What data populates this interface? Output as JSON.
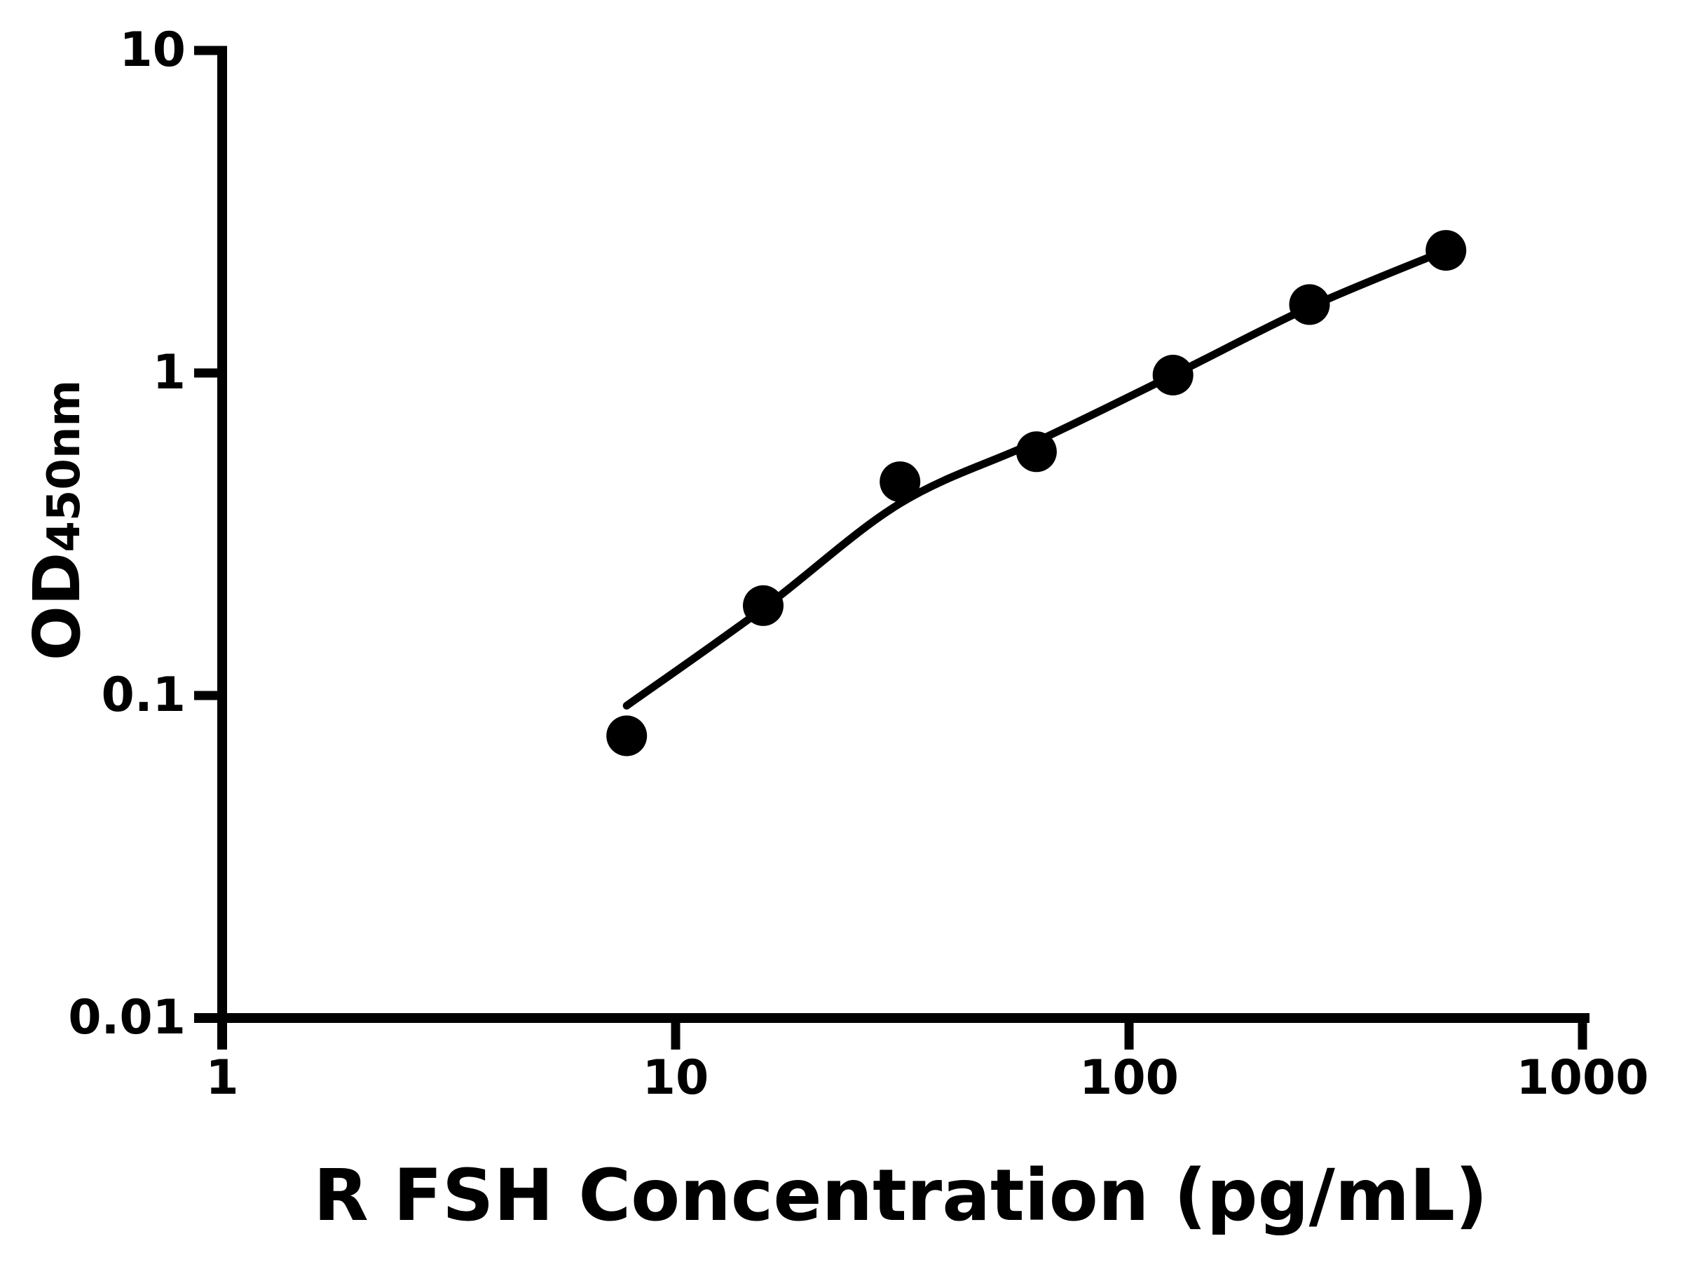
{
  "chart_data": {
    "type": "scatter",
    "title": "",
    "x_axis": {
      "title": "R FSH Concentration (pg/mL)",
      "scale": "log",
      "range": [
        1,
        1000
      ],
      "tick_values": [
        1,
        10,
        100,
        1000
      ],
      "tick_labels": [
        "1",
        "10",
        "100",
        "1000"
      ]
    },
    "y_axis": {
      "title_main": "OD",
      "title_sub": "450nm",
      "scale": "log",
      "range": [
        0.01,
        10
      ],
      "tick_values": [
        10,
        1,
        0.1,
        0.01
      ],
      "tick_labels": [
        "10",
        "1",
        "0.1",
        "0.01"
      ]
    },
    "grid": "off",
    "legend": "none",
    "series": [
      {
        "name": "standard-data-points",
        "type": "scatter",
        "marker": "filled-circle",
        "points": [
          [
            7.8,
            0.075
          ],
          [
            15.6,
            0.19
          ],
          [
            31.25,
            0.46
          ],
          [
            62.5,
            0.57
          ],
          [
            125,
            0.985
          ],
          [
            250,
            1.63
          ],
          [
            500,
            2.4
          ]
        ]
      },
      {
        "name": "fit-curve",
        "type": "line",
        "points": [
          [
            7.8,
            0.093
          ],
          [
            15.6,
            0.186
          ],
          [
            31.25,
            0.394
          ],
          [
            62.5,
            0.613
          ],
          [
            125,
            0.985
          ],
          [
            250,
            1.6
          ],
          [
            500,
            2.4
          ]
        ]
      }
    ],
    "colors": {
      "points": "#000000",
      "curve": "#000000",
      "axis": "#000000",
      "background": "#ffffff"
    }
  }
}
